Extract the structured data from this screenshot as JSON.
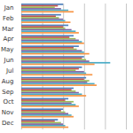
{
  "chart_data": {
    "type": "bar",
    "orientation": "horizontal",
    "categories": [
      "Jan",
      "Feb",
      "Mar",
      "Apr",
      "May",
      "Jun",
      "Jul",
      "Aug",
      "Sep",
      "Oct",
      "Nov",
      "Dec"
    ],
    "series": [
      {
        "color": "#4f81bd",
        "values": [
          40,
          38,
          45,
          50,
          55,
          60,
          58,
          62,
          50,
          45,
          40,
          35
        ]
      },
      {
        "color": "#c0504d",
        "values": [
          35,
          33,
          40,
          46,
          50,
          58,
          55,
          60,
          48,
          42,
          38,
          32
        ]
      },
      {
        "color": "#9bbb59",
        "values": [
          32,
          36,
          42,
          52,
          53,
          62,
          52,
          65,
          52,
          50,
          42,
          38
        ]
      },
      {
        "color": "#8064a2",
        "values": [
          38,
          40,
          48,
          55,
          58,
          65,
          60,
          63,
          55,
          48,
          45,
          40
        ]
      },
      {
        "color": "#4bacc6",
        "values": [
          45,
          42,
          52,
          58,
          60,
          85,
          62,
          70,
          58,
          52,
          48,
          42
        ]
      },
      {
        "color": "#f79646",
        "values": [
          50,
          47,
          55,
          60,
          65,
          70,
          68,
          72,
          62,
          55,
          50,
          45
        ]
      }
    ],
    "xlim": [
      0,
      100
    ],
    "xticks": [
      0,
      20,
      40,
      60,
      80,
      100
    ],
    "grid": true,
    "tick_labels": "y"
  }
}
